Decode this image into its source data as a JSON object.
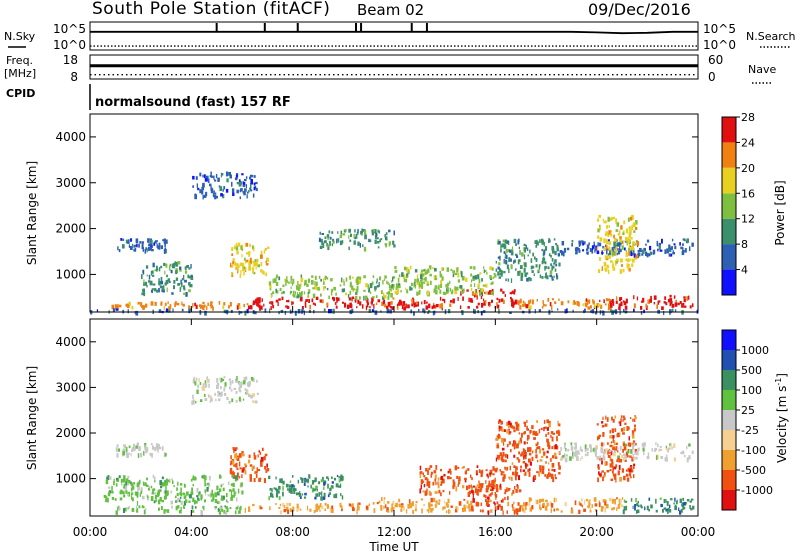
{
  "header": {
    "station": "South Pole Station (fitACF)",
    "beam": "Beam 02",
    "date": "09/Dec/2016"
  },
  "left_labels": {
    "nsky": "N.Sky",
    "freq": "Freq.",
    "freq_unit": "[MHz]",
    "cpid": "CPID"
  },
  "right_labels": {
    "nsearch": "N.Search",
    "nave": "Nave"
  },
  "cpid_text": "normalsound (fast) 157 RF",
  "chart_data": [
    {
      "type": "line",
      "name": "noise",
      "left_ticks": [
        "10^5",
        "10^0"
      ],
      "right_ticks": [
        "10^5",
        "10^0"
      ],
      "series": [
        {
          "values": [
            1.0,
            1.0,
            1.0,
            1.0,
            1.0,
            1.0,
            1.0,
            1.0,
            1.0,
            1.0,
            1.0,
            1.0,
            1.0,
            1.0,
            1.0,
            1.0,
            1.0,
            1.0,
            1.0,
            1.0,
            0.96,
            0.9,
            0.93,
            1.0,
            1.0
          ]
        },
        {
          "values": [
            0.28,
            0.28,
            0.28,
            0.28,
            0.28,
            0.28,
            0.28,
            0.28,
            0.28,
            0.28,
            0.28,
            0.28,
            0.28,
            0.28,
            0.28,
            0.28,
            0.28,
            0.28,
            0.28,
            0.28,
            0.28,
            0.28,
            0.28,
            0.28,
            0.28
          ]
        }
      ]
    },
    {
      "type": "line",
      "name": "frequency-nave",
      "left_ticks": [
        "18",
        "8"
      ],
      "right_ticks": [
        "60",
        "0"
      ],
      "series": [
        {
          "values": [
            0.55,
            0.55,
            0.55,
            0.55,
            0.55,
            0.55,
            0.55,
            0.55,
            0.55,
            0.55,
            0.55,
            0.55,
            0.55,
            0.55,
            0.55,
            0.55,
            0.55,
            0.55,
            0.55,
            0.55,
            0.55,
            0.55,
            0.55,
            0.55,
            0.55
          ]
        },
        {
          "values": [
            0.18,
            0.18,
            0.18,
            0.18,
            0.18,
            0.18,
            0.18,
            0.18,
            0.18,
            0.18,
            0.18,
            0.18,
            0.18,
            0.18,
            0.18,
            0.18,
            0.18,
            0.18,
            0.18,
            0.18,
            0.18,
            0.18,
            0.18,
            0.18,
            0.18
          ]
        }
      ]
    },
    {
      "type": "heatmap",
      "name": "power",
      "ylabel": "Slant Range [km]",
      "y_ticks": [
        "1000",
        "2000",
        "3000",
        "4000"
      ],
      "y_values": [
        1000,
        2000,
        3000,
        4000
      ],
      "ylim": [
        180,
        4500
      ],
      "colorbar_label": "Power [dB]",
      "colorbar_ticks": [
        "4",
        "8",
        "12",
        "16",
        "20",
        "24",
        "28"
      ],
      "colorbar_colors": [
        "#1010ff",
        "#2d5fb3",
        "#3b8f6b",
        "#7fbf3f",
        "#e8d020",
        "#f08010",
        "#e01010"
      ],
      "regions": [
        {
          "t": [
            0.8,
            6.2
          ],
          "r": [
            300,
            420
          ],
          "ci": 5
        },
        {
          "t": [
            6.2,
            14.5
          ],
          "r": [
            300,
            520
          ],
          "ci": 6
        },
        {
          "t": [
            14.5,
            16.8
          ],
          "r": [
            300,
            700
          ],
          "ci": 6
        },
        {
          "t": [
            16.8,
            20.5
          ],
          "r": [
            300,
            500
          ],
          "ci": 5
        },
        {
          "t": [
            20.5,
            23.8
          ],
          "r": [
            300,
            560
          ],
          "ci": 6
        },
        {
          "t": [
            0.0,
            24.0
          ],
          "r": [
            190,
            260
          ],
          "ci": 1
        },
        {
          "t": [
            1.0,
            3.0
          ],
          "r": [
            1550,
            1800
          ],
          "ci": 1
        },
        {
          "t": [
            4.0,
            6.6
          ],
          "r": [
            2700,
            3250
          ],
          "ci": 1
        },
        {
          "t": [
            5.5,
            7.0
          ],
          "r": [
            1000,
            1700
          ],
          "ci": 4
        },
        {
          "t": [
            7.0,
            12.0
          ],
          "r": [
            520,
            1000
          ],
          "ci": 3
        },
        {
          "t": [
            12.0,
            16.0
          ],
          "r": [
            600,
            1200
          ],
          "ci": 3
        },
        {
          "t": [
            16.0,
            18.5
          ],
          "r": [
            900,
            1800
          ],
          "ci": 2
        },
        {
          "t": [
            18.5,
            23.8
          ],
          "r": [
            1450,
            1800
          ],
          "ci": 1
        },
        {
          "t": [
            20.0,
            21.6
          ],
          "r": [
            1100,
            2300
          ],
          "ci": 4
        },
        {
          "t": [
            2.0,
            4.0
          ],
          "r": [
            600,
            1300
          ],
          "ci": 2
        },
        {
          "t": [
            9.0,
            12.0
          ],
          "r": [
            1600,
            2000
          ],
          "ci": 2
        }
      ]
    },
    {
      "type": "heatmap",
      "name": "velocity",
      "ylabel": "Slant Range [km]",
      "xlabel": "Time UT",
      "y_ticks": [
        "1000",
        "2000",
        "3000",
        "4000"
      ],
      "y_values": [
        1000,
        2000,
        3000,
        4000
      ],
      "ylim": [
        180,
        4500
      ],
      "x_ticks": [
        "00:00",
        "04:00",
        "08:00",
        "12:00",
        "16:00",
        "20:00",
        "00:00"
      ],
      "x_values": [
        0,
        4,
        8,
        12,
        16,
        20,
        24
      ],
      "xlim": [
        0,
        24
      ],
      "colorbar_label": "Velocity [m s",
      "colorbar_sup": "-1",
      "colorbar_ticks": [
        "-1000",
        "-500",
        "-100",
        "-25",
        "25",
        "100",
        "500",
        "1000"
      ],
      "colorbar_colors": [
        "#e01010",
        "#f05010",
        "#f0a030",
        "#f5d090",
        "#c8c8c8",
        "#60c040",
        "#3a9060",
        "#2050b0",
        "#1010ff"
      ],
      "regions": [
        {
          "t": [
            1.0,
            6.0
          ],
          "r": [
            300,
            420
          ],
          "ci": 5
        },
        {
          "t": [
            6.0,
            11.0
          ],
          "r": [
            300,
            480
          ],
          "ci": 2
        },
        {
          "t": [
            11.0,
            15.0
          ],
          "r": [
            300,
            600
          ],
          "ci": 2
        },
        {
          "t": [
            15.0,
            17.0
          ],
          "r": [
            300,
            900
          ],
          "ci": 1
        },
        {
          "t": [
            17.0,
            21.0
          ],
          "r": [
            300,
            600
          ],
          "ci": 2
        },
        {
          "t": [
            21.0,
            23.8
          ],
          "r": [
            300,
            600
          ],
          "ci": 6
        },
        {
          "t": [
            7.0,
            10.0
          ],
          "r": [
            600,
            1100
          ],
          "ci": 6
        },
        {
          "t": [
            13.0,
            16.0
          ],
          "r": [
            700,
            1300
          ],
          "ci": 1
        },
        {
          "t": [
            1.0,
            3.0
          ],
          "r": [
            1550,
            1800
          ],
          "ci": 4
        },
        {
          "t": [
            4.0,
            6.6
          ],
          "r": [
            2700,
            3250
          ],
          "ci": 4
        },
        {
          "t": [
            5.5,
            7.0
          ],
          "r": [
            1000,
            1700
          ],
          "ci": 1
        },
        {
          "t": [
            16.0,
            18.5
          ],
          "r": [
            1000,
            2300
          ],
          "ci": 1
        },
        {
          "t": [
            20.0,
            21.5
          ],
          "r": [
            1000,
            2400
          ],
          "ci": 1
        },
        {
          "t": [
            18.5,
            23.8
          ],
          "r": [
            1450,
            1800
          ],
          "ci": 4
        },
        {
          "t": [
            0.5,
            6.0
          ],
          "r": [
            500,
            1100
          ],
          "ci": 5
        }
      ]
    }
  ]
}
